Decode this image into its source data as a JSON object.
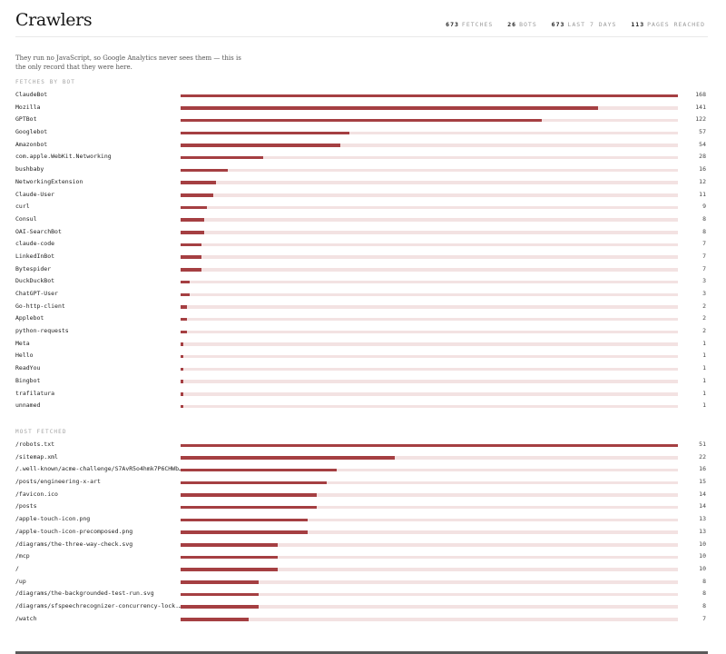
{
  "header": {
    "title": "Crawlers",
    "stats": [
      {
        "value": "673",
        "label": "FETCHES"
      },
      {
        "value": "26",
        "label": "BOTS"
      },
      {
        "value": "673",
        "label": "LAST 7 DAYS"
      },
      {
        "value": "113",
        "label": "PAGES REACHED"
      }
    ]
  },
  "intro": "They run no JavaScript, so Google Analytics never sees them — this is the only record that they were here.",
  "colors": {
    "bar": "#a53f42",
    "track": "#f3e2e2"
  },
  "by_bot": {
    "label": "FETCHES BY BOT",
    "max": 168,
    "rows": [
      {
        "name": "ClaudeBot",
        "count": 168
      },
      {
        "name": "Mozilla",
        "count": 141
      },
      {
        "name": "GPTBot",
        "count": 122
      },
      {
        "name": "Googlebot",
        "count": 57
      },
      {
        "name": "Amazonbot",
        "count": 54
      },
      {
        "name": "com.apple.WebKit.Networking",
        "count": 28
      },
      {
        "name": "bushbaby",
        "count": 16
      },
      {
        "name": "NetworkingExtension",
        "count": 12
      },
      {
        "name": "Claude-User",
        "count": 11
      },
      {
        "name": "curl",
        "count": 9
      },
      {
        "name": "Consul",
        "count": 8
      },
      {
        "name": "OAI-SearchBot",
        "count": 8
      },
      {
        "name": "claude-code",
        "count": 7
      },
      {
        "name": "LinkedInBot",
        "count": 7
      },
      {
        "name": "Bytespider",
        "count": 7
      },
      {
        "name": "DuckDuckBot",
        "count": 3
      },
      {
        "name": "ChatGPT-User",
        "count": 3
      },
      {
        "name": "Go-http-client",
        "count": 2
      },
      {
        "name": "Applebot",
        "count": 2
      },
      {
        "name": "python-requests",
        "count": 2
      },
      {
        "name": "Meta",
        "count": 1
      },
      {
        "name": "Hello",
        "count": 1
      },
      {
        "name": "ReadYou",
        "count": 1
      },
      {
        "name": "Bingbot",
        "count": 1
      },
      {
        "name": "trafilatura",
        "count": 1
      },
      {
        "name": "unnamed",
        "count": 1
      }
    ]
  },
  "most_fetched": {
    "label": "MOST FETCHED",
    "max": 51,
    "rows": [
      {
        "name": "/robots.txt",
        "count": 51
      },
      {
        "name": "/sitemap.xml",
        "count": 22
      },
      {
        "name": "/.well-known/acme-challenge/S7AvR5o4hmk7P6CHWb…",
        "count": 16
      },
      {
        "name": "/posts/engineering-x-art",
        "count": 15
      },
      {
        "name": "/favicon.ico",
        "count": 14
      },
      {
        "name": "/posts",
        "count": 14
      },
      {
        "name": "/apple-touch-icon.png",
        "count": 13
      },
      {
        "name": "/apple-touch-icon-precomposed.png",
        "count": 13
      },
      {
        "name": "/diagrams/the-three-way-check.svg",
        "count": 10
      },
      {
        "name": "/mcp",
        "count": 10
      },
      {
        "name": "/",
        "count": 10
      },
      {
        "name": "/up",
        "count": 8
      },
      {
        "name": "/diagrams/the-backgrounded-test-run.svg",
        "count": 8
      },
      {
        "name": "/diagrams/sfspeechrecognizer-concurrency-lock.…",
        "count": 8
      },
      {
        "name": "/watch",
        "count": 7
      }
    ]
  }
}
